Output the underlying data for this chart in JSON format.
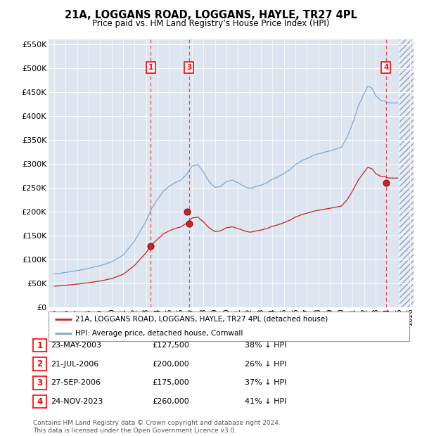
{
  "title": "21A, LOGGANS ROAD, LOGGANS, HAYLE, TR27 4PL",
  "subtitle": "Price paid vs. HM Land Registry’s House Price Index (HPI)",
  "xmin": 1995,
  "xmax": 2026,
  "ymin": 0,
  "ymax": 560000,
  "yticks": [
    0,
    50000,
    100000,
    150000,
    200000,
    250000,
    300000,
    350000,
    400000,
    450000,
    500000,
    550000
  ],
  "hpi_color": "#7aaad0",
  "price_color": "#cc2222",
  "bg_color": "#dde5f0",
  "grid_color": "#ffffff",
  "transactions": [
    {
      "num": 1,
      "date_yr": 2003.39,
      "price": 127500,
      "label": "23-MAY-2003",
      "pct": "38%",
      "dir": "↓"
    },
    {
      "num": 2,
      "date_yr": 2006.55,
      "price": 200000,
      "label": "21-JUL-2006",
      "pct": "26%",
      "dir": "↓"
    },
    {
      "num": 3,
      "date_yr": 2006.74,
      "price": 175000,
      "label": "27-SEP-2006",
      "pct": "37%",
      "dir": "↓"
    },
    {
      "num": 4,
      "date_yr": 2023.9,
      "price": 260000,
      "label": "24-NOV-2023",
      "pct": "41%",
      "dir": "↓"
    }
  ],
  "vline_transactions": [
    1,
    3,
    4
  ],
  "legend_property": "21A, LOGGANS ROAD, LOGGANS, HAYLE, TR27 4PL (detached house)",
  "legend_hpi": "HPI: Average price, detached house, Cornwall",
  "footer1": "Contains HM Land Registry data © Crown copyright and database right 2024.",
  "footer2": "This data is licensed under the Open Government Licence v3.0."
}
